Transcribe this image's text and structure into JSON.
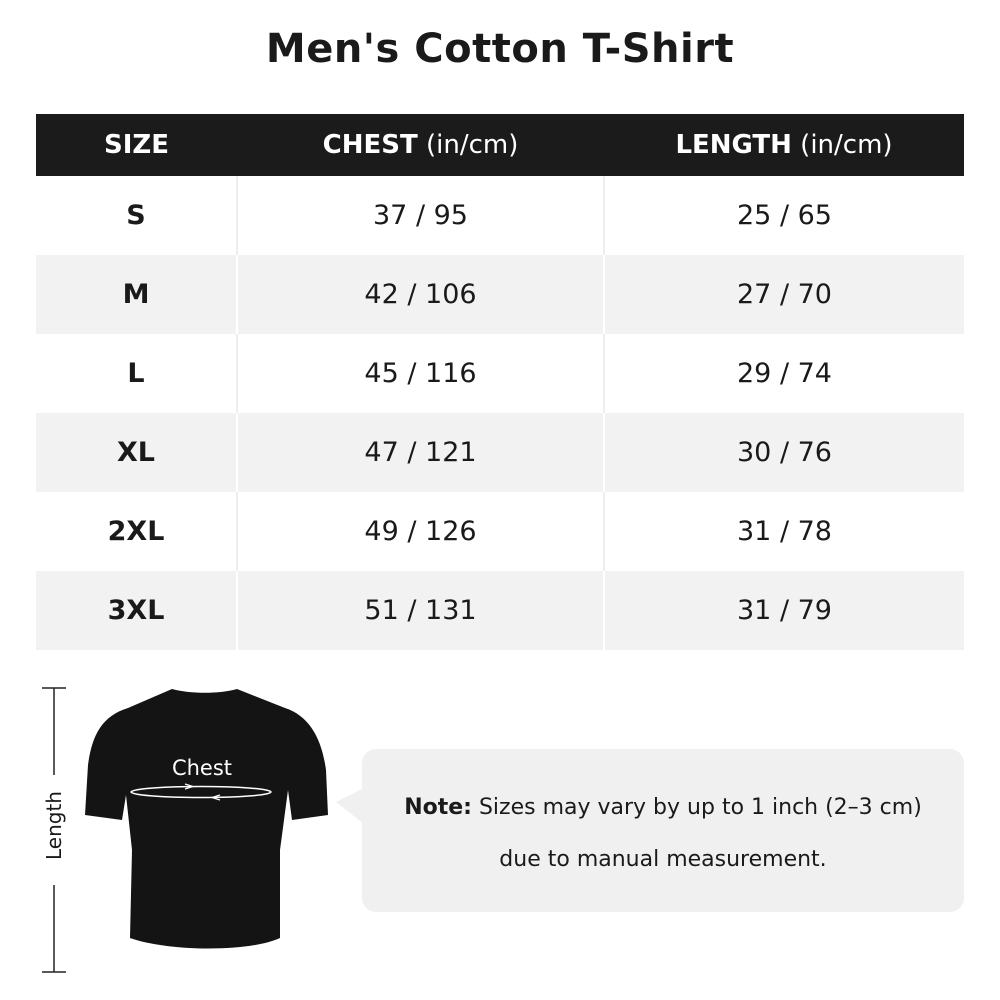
{
  "title": "Men's Cotton T-Shirt",
  "table": {
    "headers": [
      {
        "bold": "SIZE",
        "unit": ""
      },
      {
        "bold": "CHEST",
        "unit": " (in/cm)"
      },
      {
        "bold": "LENGTH",
        "unit": " (in/cm)"
      }
    ],
    "rows": [
      {
        "size": "S",
        "chest": "37 / 95",
        "length": "25 / 65"
      },
      {
        "size": "M",
        "chest": "42 / 106",
        "length": "27 / 70"
      },
      {
        "size": "L",
        "chest": "45 / 116",
        "length": "29 / 74"
      },
      {
        "size": "XL",
        "chest": "47 / 121",
        "length": "30 / 76"
      },
      {
        "size": "2XL",
        "chest": "49 / 126",
        "length": "31 / 78"
      },
      {
        "size": "3XL",
        "chest": "51 / 131",
        "length": "31 / 79"
      }
    ]
  },
  "diagram": {
    "length_label": "Length",
    "chest_label": "Chest"
  },
  "note": {
    "prefix": "Note:",
    "line1": " Sizes may vary by up to 1 inch (2–3 cm)",
    "line2": "due to manual measurement."
  },
  "colors": {
    "header_bg": "#1b1b1b",
    "alt_row": "#f2f2f2",
    "note_bg": "#f0f0f0"
  }
}
